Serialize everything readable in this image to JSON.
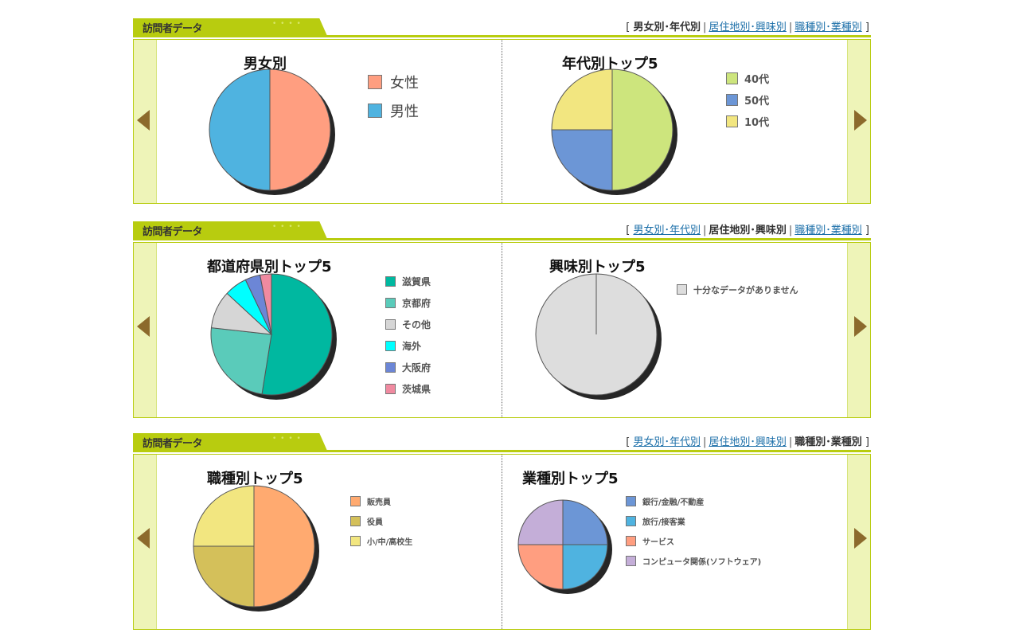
{
  "panels": [
    {
      "header": "訪問者データ",
      "nav": [
        {
          "label": "男女別･年代別",
          "active": true
        },
        {
          "label": "居住地別･興味別",
          "active": false
        },
        {
          "label": "職種別･業種別",
          "active": false
        }
      ]
    },
    {
      "header": "訪問者データ",
      "nav": [
        {
          "label": "男女別･年代別",
          "active": false
        },
        {
          "label": "居住地別･興味別",
          "active": true
        },
        {
          "label": "職種別･業種別",
          "active": false
        }
      ]
    },
    {
      "header": "訪問者データ",
      "nav": [
        {
          "label": "男女別･年代別",
          "active": false
        },
        {
          "label": "居住地別･興味別",
          "active": false
        },
        {
          "label": "職種別･業種別",
          "active": true
        }
      ]
    }
  ],
  "chart_data": [
    {
      "id": "gender",
      "type": "pie",
      "title": "男女別",
      "categories": [
        "女性",
        "男性"
      ],
      "values": [
        50,
        50
      ],
      "colors": [
        "#ff9e80",
        "#4fb3e0"
      ]
    },
    {
      "id": "age",
      "type": "pie",
      "title": "年代別トップ5",
      "categories": [
        "40代",
        "50代",
        "10代"
      ],
      "values": [
        50,
        25,
        25
      ],
      "colors": [
        "#cde57d",
        "#6c96d6",
        "#f2e680"
      ]
    },
    {
      "id": "prefecture",
      "type": "pie",
      "title": "都道府県別トップ5",
      "categories": [
        "滋賀県",
        "京都府",
        "その他",
        "海外",
        "大阪府",
        "茨城県"
      ],
      "values": [
        52,
        24,
        10,
        6,
        4,
        3
      ],
      "colors": [
        "#00b8a0",
        "#5acbba",
        "#d6d6d6",
        "#00ffff",
        "#6c86d6",
        "#f08aa0"
      ]
    },
    {
      "id": "interest",
      "type": "pie",
      "title": "興味別トップ5",
      "categories": [
        "十分なデータがありません"
      ],
      "values": [
        100
      ],
      "colors": [
        "#dddddd"
      ]
    },
    {
      "id": "occupation",
      "type": "pie",
      "title": "職種別トップ5",
      "categories": [
        "販売員",
        "役員",
        "小/中/高校生"
      ],
      "values": [
        50,
        25,
        25
      ],
      "colors": [
        "#ffaa70",
        "#d4c05a",
        "#f2e680"
      ]
    },
    {
      "id": "industry",
      "type": "pie",
      "title": "業種別トップ5",
      "categories": [
        "銀行/金融/不動産",
        "旅行/接客業",
        "サービス",
        "コンピュータ関係(ソフトウェア)"
      ],
      "values": [
        25,
        25,
        25,
        25
      ],
      "colors": [
        "#6c96d6",
        "#4fb3e0",
        "#ff9e80",
        "#c4aed8"
      ]
    }
  ]
}
